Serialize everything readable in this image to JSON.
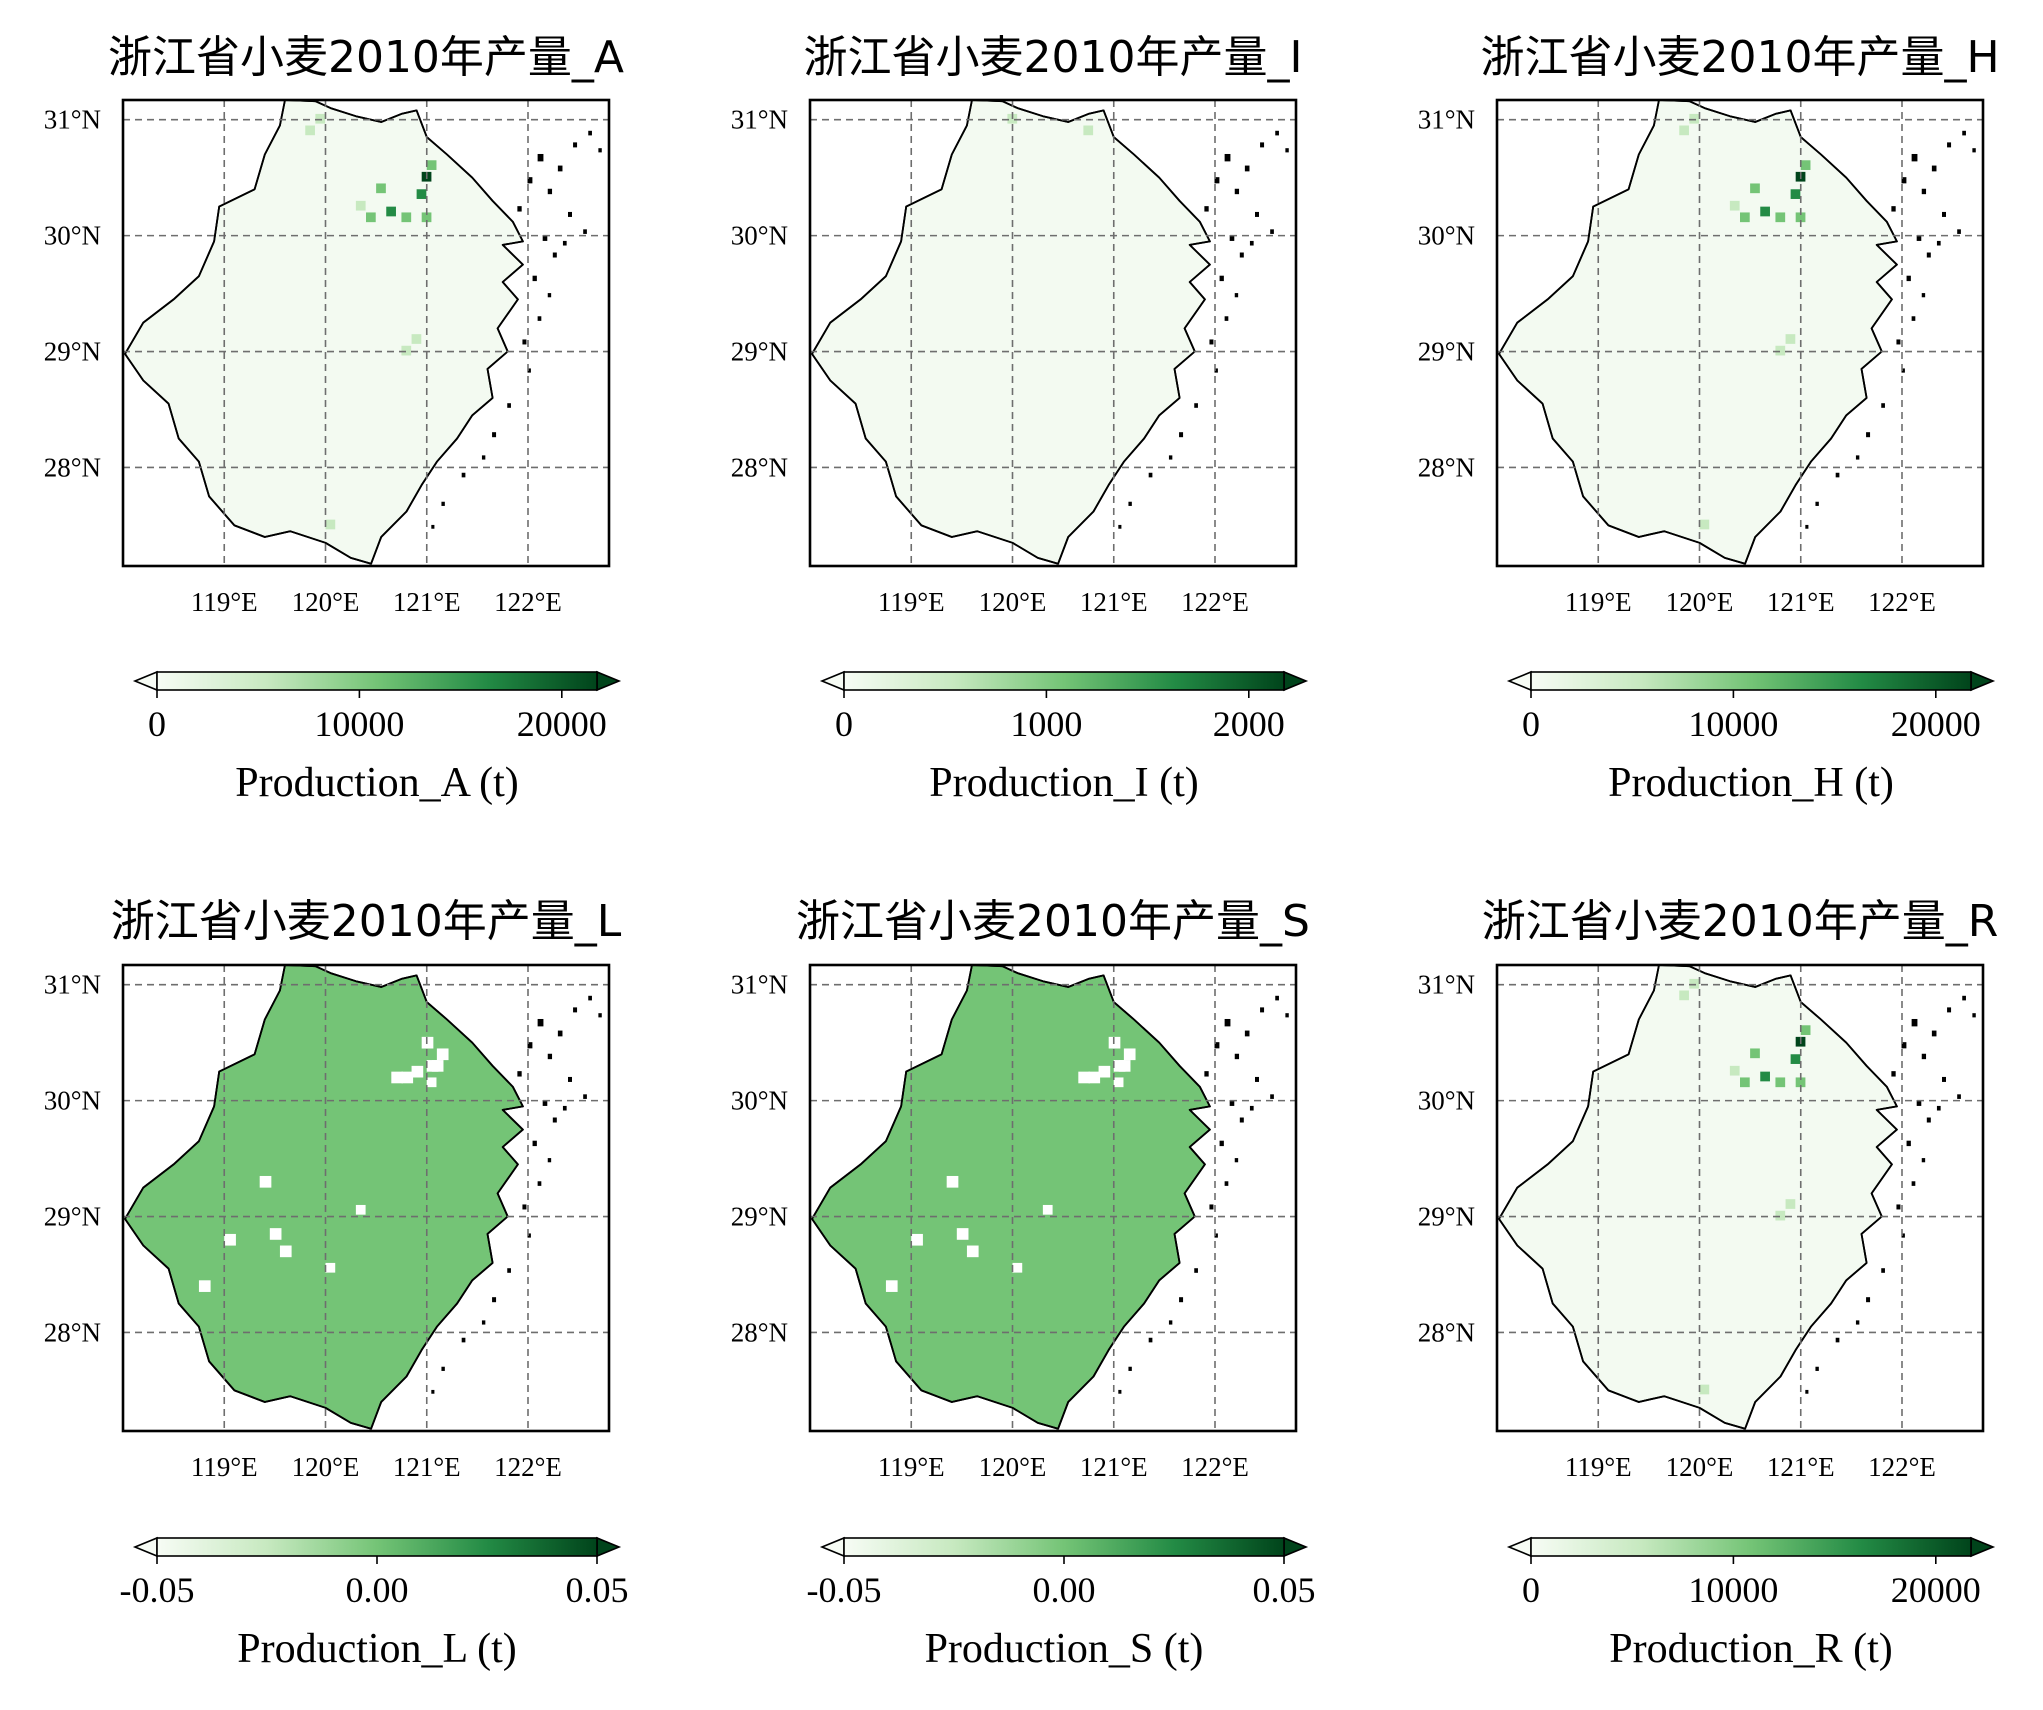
{
  "panels": [
    {
      "id": "A",
      "title": "浙江省小麦2010年产量_A",
      "cbar_label": "Production_A (t)",
      "cbar_ticks": [
        "0",
        "10000",
        "20000"
      ],
      "fill": "light",
      "accent": "#e6f4e2"
    },
    {
      "id": "I",
      "title": "浙江省小麦2010年产量_I",
      "cbar_label": "Production_I (t)",
      "cbar_ticks": [
        "0",
        "1000",
        "2000"
      ],
      "fill": "light",
      "accent": "#f3faf1"
    },
    {
      "id": "H",
      "title": "浙江省小麦2010年产量_H",
      "cbar_label": "Production_H (t)",
      "cbar_ticks": [
        "0",
        "10000",
        "20000"
      ],
      "fill": "light",
      "accent": "#e6f4e2"
    },
    {
      "id": "L",
      "title": "浙江省小麦2010年产量_L",
      "cbar_label": "Production_L (t)",
      "cbar_ticks": [
        "-0.05",
        "0.00",
        "0.05"
      ],
      "fill": "mid",
      "accent": "#74c476"
    },
    {
      "id": "S",
      "title": "浙江省小麦2010年产量_S",
      "cbar_label": "Production_S (t)",
      "cbar_ticks": [
        "-0.05",
        "0.00",
        "0.05"
      ],
      "fill": "mid",
      "accent": "#74c476"
    },
    {
      "id": "R",
      "title": "浙江省小麦2010年产量_R",
      "cbar_label": "Production_R (t)",
      "cbar_ticks": [
        "0",
        "10000",
        "20000"
      ],
      "fill": "light",
      "accent": "#e6f4e2"
    }
  ],
  "lon_ticks": [
    "119°E",
    "120°E",
    "121°E",
    "122°E"
  ],
  "lat_ticks": [
    "31°N",
    "30°N",
    "29°N",
    "28°N"
  ],
  "colormap": [
    "#f7fcf5",
    "#c7e9c0",
    "#74c476",
    "#238b45",
    "#00441b"
  ],
  "grid": true
}
